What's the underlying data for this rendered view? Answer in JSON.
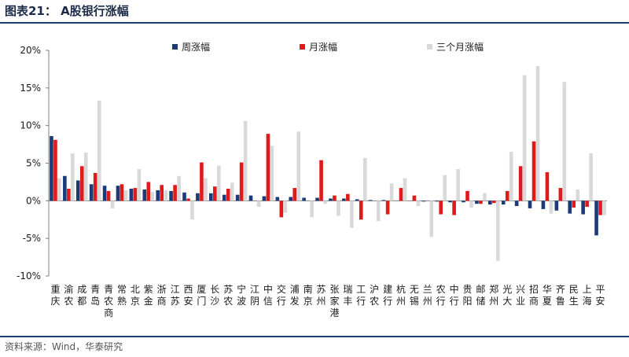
{
  "header": {
    "title": "图表21：  A股银行涨幅"
  },
  "footer": {
    "source": "资料来源：Wind，华泰研究"
  },
  "colors": {
    "weekly": "#1a3a7a",
    "monthly": "#e0191b",
    "quarterly": "#d9d9d9",
    "axis": "#7f7f7f",
    "rule": "#1c3d6e"
  },
  "chart_data": {
    "type": "bar",
    "ylim": [
      -10,
      20
    ],
    "yticks": [
      -10,
      -5,
      0,
      5,
      10,
      15,
      20
    ],
    "ytick_labels": [
      "-10%",
      "-5%",
      "0%",
      "5%",
      "10%",
      "15%",
      "20%"
    ],
    "legend_position": "top",
    "grid": false,
    "categories": [
      "重庆",
      "渝农",
      "成都",
      "青岛",
      "青农商",
      "常熟",
      "北京",
      "紫金",
      "浙商",
      "江苏",
      "西安",
      "厦门",
      "长沙",
      "苏农",
      "宁波",
      "江阴",
      "中信",
      "交行",
      "浦发",
      "南京",
      "苏州",
      "张家港",
      "瑞丰",
      "工行",
      "沪农",
      "建行",
      "杭州",
      "无锡",
      "兰州",
      "农行",
      "中行",
      "贵阳",
      "邮储",
      "郑州",
      "光大",
      "兴业",
      "招商",
      "华夏",
      "齐鲁",
      "民生",
      "上海",
      "平安"
    ],
    "series": [
      {
        "name": "周涨幅",
        "values": [
          8.6,
          3.3,
          2.7,
          2.2,
          2.0,
          2.0,
          1.6,
          1.5,
          1.4,
          1.3,
          1.1,
          1.0,
          1.0,
          0.8,
          0.8,
          0.7,
          0.6,
          0.5,
          0.5,
          0.4,
          0.4,
          0.3,
          0.3,
          0.2,
          0.1,
          0.1,
          0.0,
          0.0,
          -0.1,
          -0.1,
          -0.2,
          -0.2,
          -0.4,
          -0.5,
          -0.5,
          -0.7,
          -1.0,
          -1.1,
          -1.3,
          -1.7,
          -1.8,
          -4.6
        ]
      },
      {
        "name": "月涨幅",
        "values": [
          8.1,
          1.6,
          4.6,
          3.7,
          1.3,
          2.2,
          1.7,
          2.5,
          2.1,
          2.1,
          0.3,
          5.1,
          1.9,
          1.6,
          5.1,
          0.0,
          8.9,
          -2.2,
          1.7,
          0.0,
          5.4,
          0.7,
          0.9,
          -2.5,
          0.0,
          -1.8,
          1.7,
          0.7,
          0.0,
          -1.8,
          -1.9,
          1.3,
          -0.4,
          -0.3,
          1.3,
          4.6,
          7.9,
          3.8,
          1.7,
          -0.9,
          -0.8,
          -1.9
        ]
      },
      {
        "name": "三个月涨幅",
        "values": [
          3.0,
          6.3,
          6.4,
          13.3,
          -1.0,
          1.4,
          4.2,
          1.2,
          1.4,
          3.3,
          -2.5,
          3.0,
          4.7,
          2.4,
          10.6,
          -0.8,
          7.3,
          -1.6,
          9.2,
          -2.2,
          -0.4,
          -2.0,
          -3.6,
          5.7,
          -2.7,
          2.3,
          3.0,
          -0.7,
          -4.8,
          3.4,
          4.2,
          -0.9,
          1.0,
          -8.0,
          6.5,
          16.7,
          17.9,
          -1.7,
          15.8,
          1.5,
          6.3,
          -1.9
        ]
      }
    ]
  }
}
